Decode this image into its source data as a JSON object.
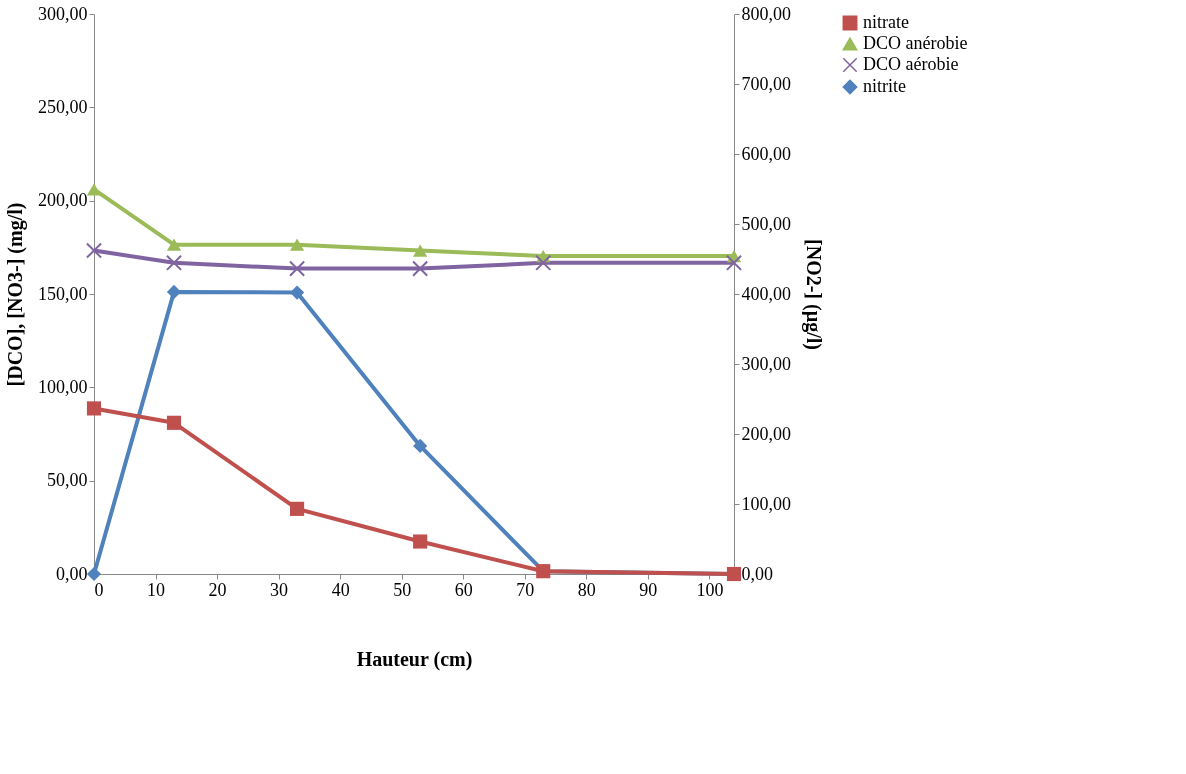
{
  "chart_data": {
    "type": "line",
    "xlabel": "Hauteur (cm)",
    "ylabel": "[DCO], [NO3-] (mg/l)",
    "y2label": "[NO2-] (µg/l)",
    "x": [
      0,
      13,
      33,
      53,
      73,
      104
    ],
    "series": [
      {
        "name": "nitrate",
        "color": "#c0504d",
        "marker": "square",
        "values": [
          88.7,
          81.0,
          34.9,
          17.4,
          1.5,
          0.0
        ]
      },
      {
        "name": "DCO anérobie",
        "color": "#9bbb59",
        "marker": "triangle",
        "values": [
          206.0,
          176.4,
          176.4,
          173.3,
          170.3,
          170.3
        ]
      },
      {
        "name": "DCO aérobie",
        "color": "#8064a2",
        "marker": "cross",
        "values": [
          173.3,
          166.7,
          163.6,
          163.6,
          166.7,
          166.7
        ]
      },
      {
        "name": "nitrite",
        "color": "#4f81bd",
        "marker": "diamond",
        "axis": "y2",
        "values": [
          0,
          403,
          402,
          183,
          4,
          0
        ]
      }
    ],
    "xlim": [
      0,
      104
    ],
    "xticks": [
      0,
      10,
      20,
      30,
      40,
      50,
      60,
      70,
      80,
      90,
      100
    ],
    "ylim": [
      0,
      300
    ],
    "yticks": [
      {
        "value": 0,
        "label": "0,00"
      },
      {
        "value": 50,
        "label": "50,00"
      },
      {
        "value": 100,
        "label": "100,00"
      },
      {
        "value": 150,
        "label": "150,00"
      },
      {
        "value": 200,
        "label": "200,00"
      },
      {
        "value": 250,
        "label": "250,00"
      },
      {
        "value": 300,
        "label": "300,00"
      }
    ],
    "y2lim": [
      0,
      800
    ],
    "y2ticks": [
      {
        "value": 0,
        "label": "0,00"
      },
      {
        "value": 100,
        "label": "100,00"
      },
      {
        "value": 200,
        "label": "200,00"
      },
      {
        "value": 300,
        "label": "300,00"
      },
      {
        "value": 400,
        "label": "400,00"
      },
      {
        "value": 500,
        "label": "500,00"
      },
      {
        "value": 600,
        "label": "600,00"
      },
      {
        "value": 700,
        "label": "700,00"
      },
      {
        "value": 800,
        "label": "800,00"
      }
    ],
    "grid": false,
    "legend": "right"
  }
}
